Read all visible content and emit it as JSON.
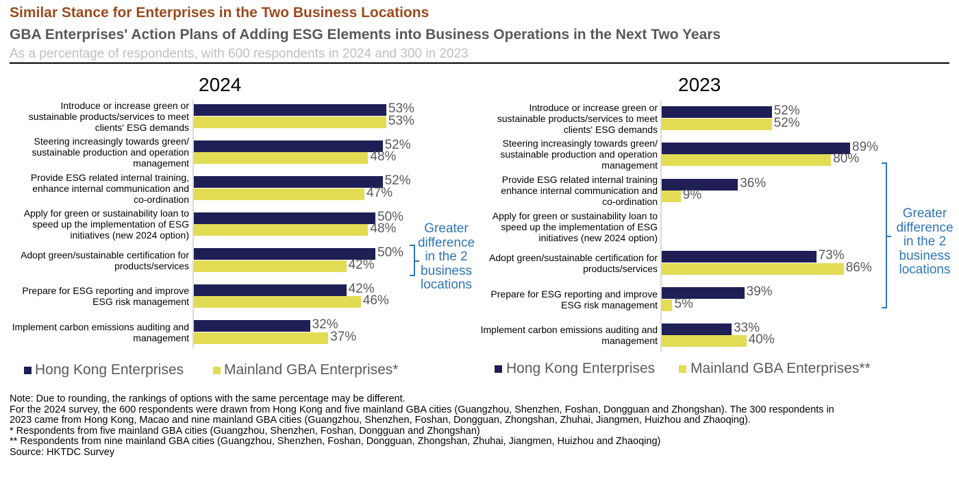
{
  "header": {
    "title": "Similar Stance for Enterprises in the Two Business Locations",
    "subtitle": "GBA Enterprises' Action Plans of Adding ESG Elements into Business Operations in the Next Two Years",
    "note": "As a percentage of respondents, with 600 respondents in 2024 and 300 in 2023"
  },
  "colors": {
    "hong_kong": "#1f1f56",
    "mainland": "#e2dc55",
    "annotation": "#2e75b6",
    "title": "#9a4a1e"
  },
  "chart_data": [
    {
      "type": "bar",
      "orientation": "horizontal",
      "title": "2024",
      "categories": [
        "Introduce or increase green or\nsustainable products/services to meet\nclients' ESG demands",
        "Steering increasingly towards green/\nsustainable production and operation\nmanagement",
        "Provide ESG related internal training,\nenhance internal communication and\nco-ordination",
        "Apply for green or sustainability loan to\nspeed up the implementation of ESG\ninitiatives (new 2024 option)",
        "Adopt green/sustainable certification for\nproducts/services",
        "Prepare for ESG reporting and improve\nESG risk management",
        "Implement carbon emissions auditing and\nmanagement"
      ],
      "series": [
        {
          "name": "Hong Kong Enterprises",
          "values": [
            53,
            52,
            52,
            50,
            50,
            42,
            32
          ],
          "labels": [
            "53%",
            "52%",
            "52%",
            "50%",
            "50%",
            "42%",
            "32%"
          ]
        },
        {
          "name": "Mainland GBA Enterprises*",
          "values": [
            53,
            48,
            47,
            48,
            42,
            46,
            37
          ],
          "labels": [
            "53%",
            "48%",
            "47%",
            "48%",
            "42%",
            "46%",
            "37%"
          ]
        }
      ],
      "annotation": "Greater\ndifference\nin the 2\nbusiness\nlocations",
      "legend": "bottom"
    },
    {
      "type": "bar",
      "orientation": "horizontal",
      "title": "2023",
      "categories": [
        "Introduce or increase green or\nsustainable products/services to meet\nclients' ESG demands",
        "Steering increasingly towards green/\nsustainable production and operation\nmanagement",
        "Provide ESG related internal training\nenhance internal communication and\nco-ordination",
        "Apply for green or sustainability loan to\nspeed up the implementation of ESG\ninitiatives (new 2024 option)",
        "Adopt green/sustainable certification for\nproducts/services",
        "Prepare for ESG reporting and improve\nESG risk management",
        "Implement carbon emissions auditing and\nmanagement"
      ],
      "series": [
        {
          "name": "Hong Kong Enterprises",
          "values": [
            52,
            89,
            36,
            null,
            73,
            39,
            33
          ],
          "labels": [
            "52%",
            "89%",
            "36%",
            "",
            "73%",
            "39%",
            "33%"
          ]
        },
        {
          "name": "Mainland GBA Enterprises**",
          "values": [
            52,
            80,
            9,
            null,
            86,
            5,
            40
          ],
          "labels": [
            "52%",
            "80%",
            "9%",
            "",
            "86%",
            "5%",
            "40%"
          ]
        }
      ],
      "annotation": "Greater\ndifference\nin the 2\nbusiness\nlocations",
      "legend": "bottom"
    }
  ],
  "notes": [
    "Note: Due to rounding, the rankings of options with the same percentage may be different.",
    "For the 2024 survey, the 600 respondents were drawn from Hong Kong and five mainland GBA cities (Guangzhou, Shenzhen, Foshan, Dongguan and Zhongshan). The 300 respondents in",
    "2023 came from Hong Kong, Macao and nine mainland GBA cities (Guangzhou, Shenzhen, Foshan, Dongguan, Zhongshan, Zhuhai, Jiangmen, Huizhou and Zhaoqing).",
    "* Respondents from five mainland GBA cities (Guangzhou, Shenzhen, Foshan, Dongguan and Zhongshan)",
    "** Respondents from nine mainland GBA cities (Guangzhou, Shenzhen, Foshan, Dongguan, Zhongshan, Zhuhai, Jiangmen, Huizhou and Zhaoqing)",
    "Source: HKTDC Survey"
  ]
}
